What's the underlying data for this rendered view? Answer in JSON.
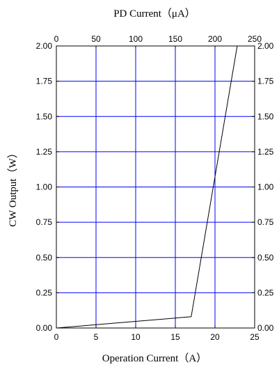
{
  "chart_data": {
    "type": "line",
    "title": "",
    "xlabel": "Operation Current（A）",
    "x2label": "PD Current（μA）",
    "ylabel": "CW Output（W）",
    "xlim": [
      0,
      25
    ],
    "x2lim": [
      0,
      250
    ],
    "ylim": [
      0,
      2.0
    ],
    "x_ticks": [
      "0",
      "5",
      "10",
      "15",
      "20",
      "25"
    ],
    "x2_ticks": [
      "0",
      "50",
      "100",
      "150",
      "200",
      "250"
    ],
    "y_ticks": [
      "0.00",
      "0.25",
      "0.50",
      "0.75",
      "1.00",
      "1.25",
      "1.50",
      "1.75",
      "2.00"
    ],
    "y2_ticks": [
      "0.00",
      "0.25",
      "0.50",
      "0.75",
      "1.00",
      "1.25",
      "1.50",
      "1.75",
      "2.00"
    ],
    "grid": true,
    "grid_color": "#0000ff",
    "line_color": "#000000",
    "series": [
      {
        "x": [
          0,
          17,
          22.8
        ],
        "y": [
          0,
          0.08,
          2.0
        ]
      }
    ]
  }
}
